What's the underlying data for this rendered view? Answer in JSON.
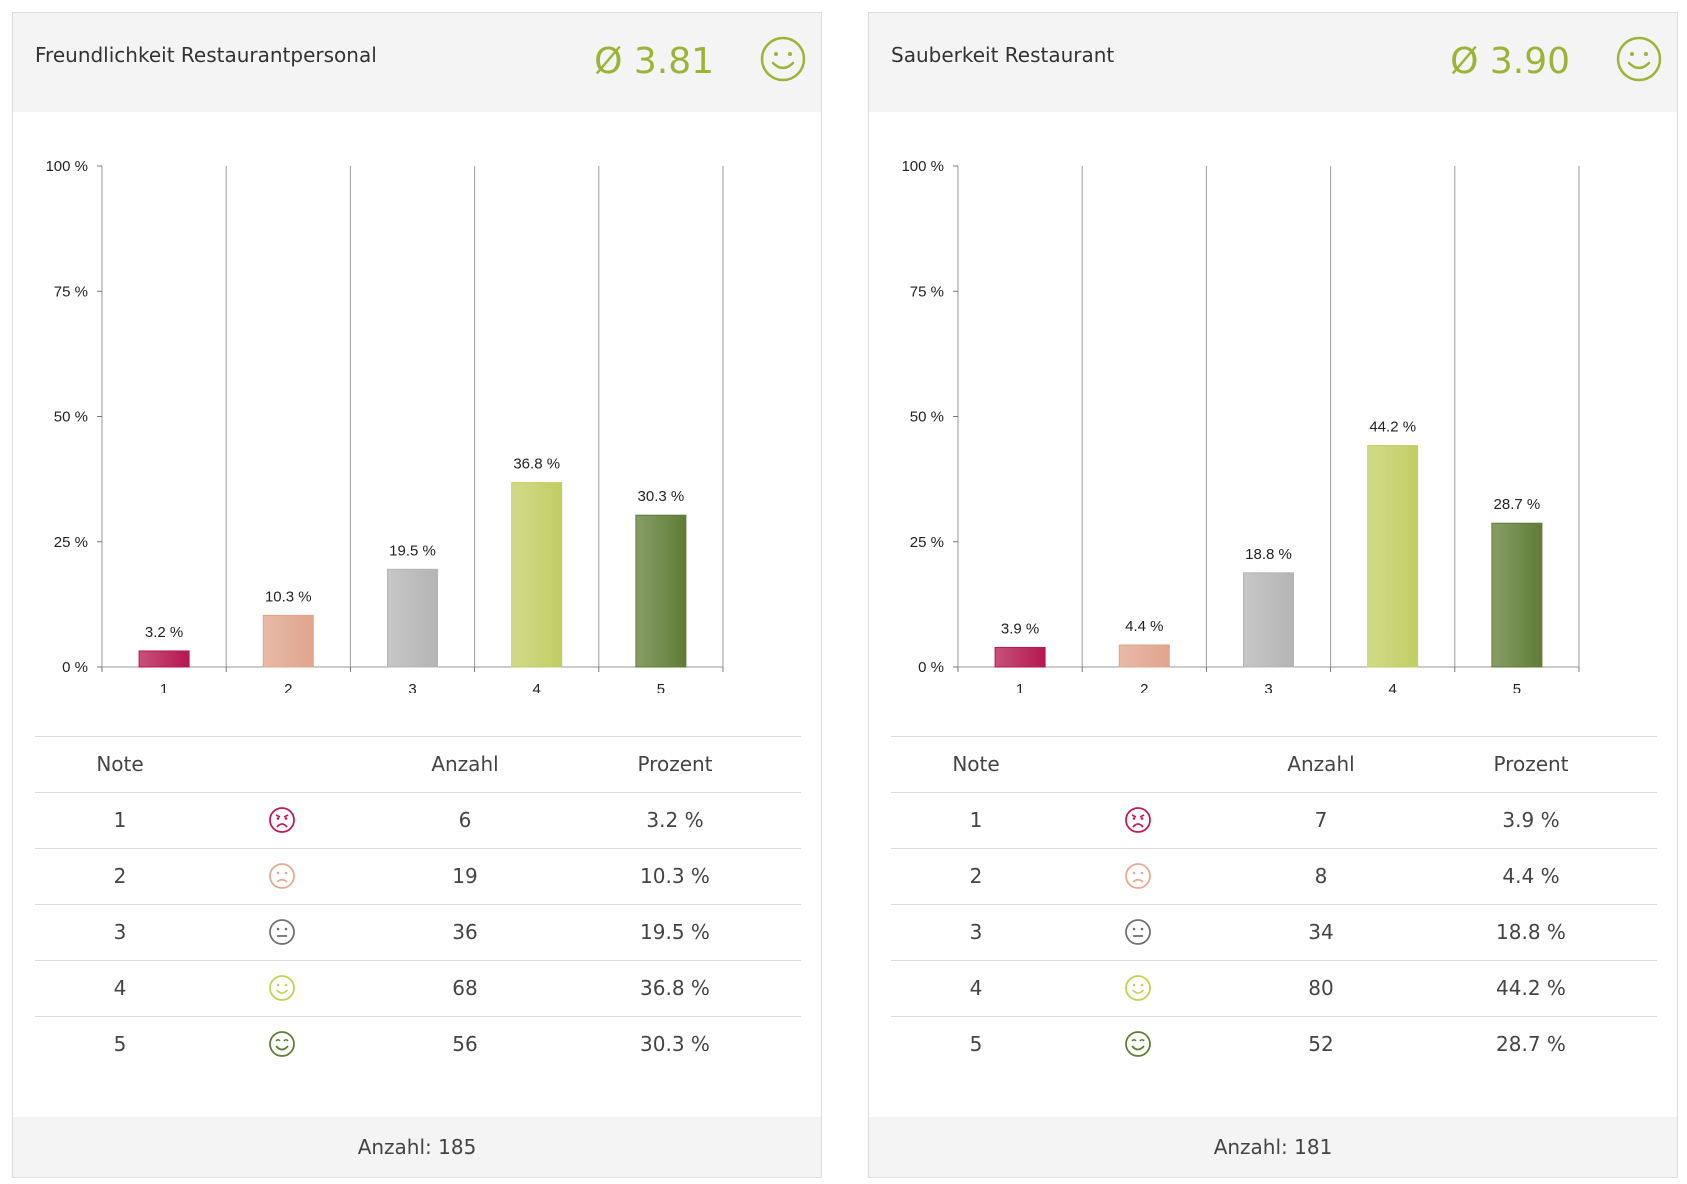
{
  "colors": {
    "accent": "#9cb436",
    "bars": [
      "#b5174f",
      "#e0a48c",
      "#b4b4b4",
      "#c2cd63",
      "#5f7d35"
    ],
    "icons": [
      "#c2185b",
      "#e8a892",
      "#707070",
      "#c5cf52",
      "#5f7d35"
    ]
  },
  "panels": [
    {
      "title": "Freundlichkeit Restaurantpersonal",
      "average": "Ø 3.81",
      "avg_icon": "smile-icon",
      "table_headers": {
        "note": "Note",
        "anzahl": "Anzahl",
        "prozent": "Prozent"
      },
      "rows": [
        {
          "note": "1",
          "icon": "very-sad-face-icon",
          "anzahl": "6",
          "prozent": "3.2 %"
        },
        {
          "note": "2",
          "icon": "sad-face-icon",
          "anzahl": "19",
          "prozent": "10.3 %"
        },
        {
          "note": "3",
          "icon": "neutral-face-icon",
          "anzahl": "36",
          "prozent": "19.5 %"
        },
        {
          "note": "4",
          "icon": "smile-face-icon",
          "anzahl": "68",
          "prozent": "36.8 %"
        },
        {
          "note": "5",
          "icon": "grin-face-icon",
          "anzahl": "56",
          "prozent": "30.3 %"
        }
      ],
      "footer": "Anzahl: 185"
    },
    {
      "title": "Sauberkeit Restaurant",
      "average": "Ø 3.90",
      "avg_icon": "smile-icon",
      "table_headers": {
        "note": "Note",
        "anzahl": "Anzahl",
        "prozent": "Prozent"
      },
      "rows": [
        {
          "note": "1",
          "icon": "very-sad-face-icon",
          "anzahl": "7",
          "prozent": "3.9 %"
        },
        {
          "note": "2",
          "icon": "sad-face-icon",
          "anzahl": "8",
          "prozent": "4.4 %"
        },
        {
          "note": "3",
          "icon": "neutral-face-icon",
          "anzahl": "34",
          "prozent": "18.8 %"
        },
        {
          "note": "4",
          "icon": "smile-face-icon",
          "anzahl": "80",
          "prozent": "44.2 %"
        },
        {
          "note": "5",
          "icon": "grin-face-icon",
          "anzahl": "52",
          "prozent": "28.7 %"
        }
      ],
      "footer": "Anzahl: 181"
    }
  ],
  "chart_data": [
    {
      "type": "bar",
      "categories": [
        "1",
        "2",
        "3",
        "4",
        "5"
      ],
      "values": [
        3.2,
        10.3,
        19.5,
        36.8,
        30.3
      ],
      "data_labels": [
        "3.2 %",
        "10.3 %",
        "19.5 %",
        "36.8 %",
        "30.3 %"
      ],
      "ylim": [
        0,
        100
      ],
      "yticks": [
        0,
        25,
        50,
        75,
        100
      ],
      "ytick_labels": [
        "0 %",
        "25 %",
        "50 %",
        "75 %",
        "100 %"
      ],
      "grid": "vertical"
    },
    {
      "type": "bar",
      "categories": [
        "1",
        "2",
        "3",
        "4",
        "5"
      ],
      "values": [
        3.9,
        4.4,
        18.8,
        44.2,
        28.7
      ],
      "data_labels": [
        "3.9 %",
        "4.4 %",
        "18.8 %",
        "44.2 %",
        "28.7 %"
      ],
      "ylim": [
        0,
        100
      ],
      "yticks": [
        0,
        25,
        50,
        75,
        100
      ],
      "ytick_labels": [
        "0 %",
        "25 %",
        "50 %",
        "75 %",
        "100 %"
      ],
      "grid": "vertical"
    }
  ]
}
